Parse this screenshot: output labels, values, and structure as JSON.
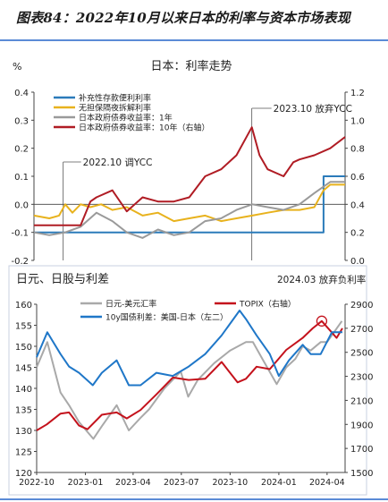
{
  "figure_title": "图表84：2022年10月以来日本的利率与资本市场表现",
  "chart_data": [
    {
      "type": "line",
      "title": "日本：利率走势",
      "y_unit_label": "%",
      "ylim": [
        -0.2,
        0.4
      ],
      "y_ticks": [
        "0.4",
        "0.3",
        "0.2",
        "0.1",
        "0.0",
        "-0.1",
        "-0.2"
      ],
      "y2lim": [
        0,
        1.2
      ],
      "y2_ticks": [
        "1.2",
        "1.0",
        "0.8",
        "0.6",
        "0.4",
        "0.2",
        "0.0"
      ],
      "legend_position": "top-left",
      "x_range": [
        "2022-09-01",
        "2024-04-30"
      ],
      "series": [
        {
          "name": "补充性存款便利利率",
          "color": "#2b7bba",
          "axis": "left",
          "x": [
            "2022-09-01",
            "2024-03-19",
            "2024-03-19",
            "2024-04-30"
          ],
          "values": [
            -0.1,
            -0.1,
            0.1,
            0.1
          ]
        },
        {
          "name": "无担保隔夜拆解利率",
          "color": "#e8b21d",
          "axis": "left",
          "x": [
            "2022-09-01",
            "2022-10-01",
            "2022-10-20",
            "2022-11-01",
            "2022-11-15",
            "2022-12-01",
            "2022-12-20",
            "2023-01-10",
            "2023-02-01",
            "2023-03-01",
            "2023-04-01",
            "2023-05-01",
            "2023-06-01",
            "2023-07-01",
            "2023-08-01",
            "2023-09-01",
            "2023-10-01",
            "2023-11-01",
            "2023-12-01",
            "2024-01-01",
            "2024-02-01",
            "2024-03-01",
            "2024-03-19",
            "2024-04-01",
            "2024-04-30"
          ],
          "values": [
            -0.04,
            -0.05,
            -0.04,
            0.0,
            -0.03,
            0.0,
            -0.01,
            0.0,
            -0.02,
            -0.01,
            -0.04,
            -0.03,
            -0.06,
            -0.05,
            -0.04,
            -0.06,
            -0.05,
            -0.04,
            -0.03,
            -0.02,
            -0.02,
            -0.01,
            0.05,
            0.07,
            0.07
          ]
        },
        {
          "name": "日本政府债券收益率：1年",
          "color": "#9a9a9a",
          "axis": "left",
          "x": [
            "2022-09-01",
            "2022-10-01",
            "2022-11-01",
            "2022-12-01",
            "2023-01-01",
            "2023-02-01",
            "2023-03-01",
            "2023-04-01",
            "2023-05-01",
            "2023-06-01",
            "2023-07-01",
            "2023-08-01",
            "2023-09-01",
            "2023-10-01",
            "2023-11-01",
            "2023-12-01",
            "2024-01-01",
            "2024-02-01",
            "2024-03-01",
            "2024-04-01",
            "2024-04-30"
          ],
          "values": [
            -0.1,
            -0.11,
            -0.1,
            -0.08,
            -0.03,
            -0.06,
            -0.1,
            -0.12,
            -0.09,
            -0.11,
            -0.1,
            -0.06,
            -0.05,
            -0.02,
            0.0,
            -0.01,
            -0.02,
            0.0,
            0.04,
            0.08,
            0.08
          ]
        },
        {
          "name": "日本政府债券收益率：10年（右轴）",
          "color": "#b01c24",
          "axis": "right",
          "x": [
            "2022-09-01",
            "2022-10-01",
            "2022-11-01",
            "2022-12-01",
            "2022-12-20",
            "2023-01-01",
            "2023-02-01",
            "2023-03-01",
            "2023-04-01",
            "2023-05-01",
            "2023-06-01",
            "2023-07-01",
            "2023-08-01",
            "2023-09-01",
            "2023-10-01",
            "2023-10-31",
            "2023-11-15",
            "2023-12-01",
            "2024-01-01",
            "2024-01-20",
            "2024-02-01",
            "2024-03-01",
            "2024-04-01",
            "2024-04-30"
          ],
          "values": [
            0.25,
            0.25,
            0.25,
            0.25,
            0.42,
            0.45,
            0.5,
            0.35,
            0.45,
            0.42,
            0.42,
            0.45,
            0.6,
            0.65,
            0.75,
            0.95,
            0.75,
            0.65,
            0.6,
            0.7,
            0.72,
            0.75,
            0.8,
            0.88
          ]
        }
      ],
      "annotations": [
        "2022.10 调YCC",
        "2023.10 放弃YCC"
      ]
    },
    {
      "type": "line",
      "title": "日元、日股与利差",
      "ylim": [
        120,
        160
      ],
      "y_ticks": [
        "160",
        "155",
        "150",
        "145",
        "140",
        "135",
        "130",
        "125",
        "120"
      ],
      "y2lim": [
        1500,
        2900
      ],
      "y2_ticks": [
        "2900",
        "2700",
        "2500",
        "2300",
        "2100",
        "1900",
        "1700",
        "1500"
      ],
      "x_ticks": [
        "2022-10",
        "2023-01",
        "2023-04",
        "2023-07",
        "2023-10",
        "2024-01",
        "2024-04"
      ],
      "legend_position": "top-left",
      "series": [
        {
          "name": "日元-美元汇率",
          "color": "#a9a9a9",
          "axis": "left",
          "x": [
            "2022-10-01",
            "2022-10-21",
            "2022-11-15",
            "2022-12-01",
            "2022-12-20",
            "2023-01-16",
            "2023-02-01",
            "2023-03-01",
            "2023-03-24",
            "2023-04-15",
            "2023-05-01",
            "2023-05-30",
            "2023-06-30",
            "2023-07-14",
            "2023-08-01",
            "2023-09-01",
            "2023-10-01",
            "2023-10-31",
            "2023-11-13",
            "2023-12-01",
            "2023-12-28",
            "2024-01-15",
            "2024-02-01",
            "2024-02-15",
            "2024-03-01",
            "2024-03-20",
            "2024-04-01",
            "2024-04-29"
          ],
          "values": [
            145,
            151,
            139,
            136,
            132,
            128,
            131,
            136,
            130,
            133,
            135,
            140,
            144,
            138,
            142,
            146,
            149,
            151,
            151,
            147,
            141,
            145,
            147,
            150,
            149,
            151,
            151,
            156
          ]
        },
        {
          "name": "TOPIX（右轴）",
          "color": "#c4121c",
          "axis": "right",
          "x": [
            "2022-10-01",
            "2022-10-20",
            "2022-11-15",
            "2022-12-01",
            "2022-12-20",
            "2023-01-05",
            "2023-02-01",
            "2023-03-01",
            "2023-03-20",
            "2023-04-15",
            "2023-05-15",
            "2023-06-15",
            "2023-07-15",
            "2023-08-15",
            "2023-09-15",
            "2023-10-15",
            "2023-10-31",
            "2023-11-20",
            "2023-12-15",
            "2024-01-15",
            "2024-02-15",
            "2024-03-05",
            "2024-03-22",
            "2024-04-05",
            "2024-04-19",
            "2024-04-30"
          ],
          "values": [
            1850,
            1900,
            1990,
            2000,
            1890,
            1860,
            1980,
            2000,
            1950,
            2020,
            2150,
            2290,
            2270,
            2280,
            2420,
            2250,
            2280,
            2380,
            2360,
            2520,
            2620,
            2700,
            2760,
            2690,
            2620,
            2700
          ]
        },
        {
          "name": "10y国债利差：美国-日本（左二）",
          "color": "#1f77c8",
          "axis": "left2",
          "x": [
            "2022-10-01",
            "2022-10-21",
            "2022-11-15",
            "2022-12-01",
            "2022-12-20",
            "2023-01-15",
            "2023-02-01",
            "2023-03-01",
            "2023-03-24",
            "2023-04-15",
            "2023-05-15",
            "2023-06-15",
            "2023-07-15",
            "2023-08-15",
            "2023-09-15",
            "2023-10-19",
            "2023-11-01",
            "2023-11-20",
            "2023-12-15",
            "2024-01-01",
            "2024-01-20",
            "2024-02-15",
            "2024-03-01",
            "2024-03-20",
            "2024-04-10",
            "2024-04-30"
          ],
          "values": [
            3.55,
            3.95,
            3.6,
            3.4,
            3.3,
            3.1,
            3.3,
            3.5,
            3.1,
            3.1,
            3.3,
            3.25,
            3.4,
            3.6,
            3.9,
            4.3,
            4.15,
            3.9,
            3.6,
            3.25,
            3.5,
            3.75,
            3.6,
            3.6,
            3.95,
            3.95
          ]
        }
      ],
      "annotations": [
        "2024.03 放弃负利率"
      ]
    }
  ]
}
